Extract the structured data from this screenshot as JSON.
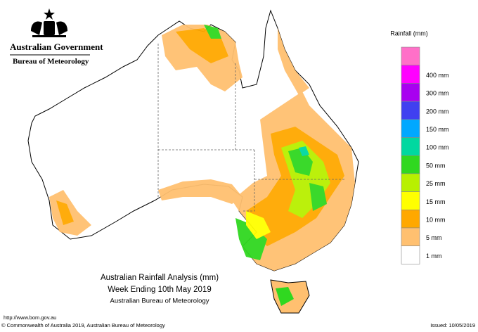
{
  "header": {
    "government": "Australian Government",
    "agency": "Bureau of Meteorology"
  },
  "legend": {
    "title": "Rainfall (mm)",
    "top_color": "#ff70c8",
    "items": [
      {
        "label": "400 mm",
        "color": "#ff00ff"
      },
      {
        "label": "300 mm",
        "color": "#a800f0"
      },
      {
        "label": "200 mm",
        "color": "#4040f0"
      },
      {
        "label": "150 mm",
        "color": "#00a8ff"
      },
      {
        "label": "100 mm",
        "color": "#00d8a0"
      },
      {
        "label": "50 mm",
        "color": "#30d820"
      },
      {
        "label": "25 mm",
        "color": "#b8f000"
      },
      {
        "label": "15 mm",
        "color": "#ffff00"
      },
      {
        "label": "10 mm",
        "color": "#ffa800"
      },
      {
        "label": "5 mm",
        "color": "#ffc070"
      },
      {
        "label": "1 mm",
        "color": "#ffffff"
      }
    ]
  },
  "caption": {
    "title": "Australian Rainfall Analysis (mm)",
    "period": "Week Ending 10th May 2019",
    "source": "Australian Bureau of Meteorology"
  },
  "footer": {
    "url": "http://www.bom.gov.au",
    "copyright": "© Commonwealth of Australia 2019, Australian Bureau of Meteorology",
    "issued": "Issued: 10/05/2019"
  }
}
